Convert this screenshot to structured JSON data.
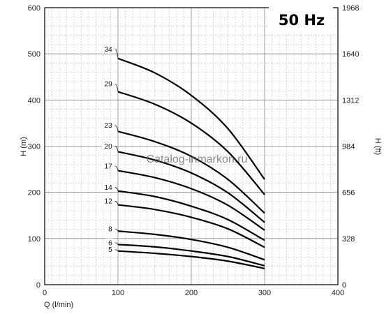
{
  "chart_data": {
    "type": "line",
    "badge": "50 Hz",
    "watermark": "Catalog-inmarkon.ru",
    "xlabel": "Q (l/min)",
    "ylabel_left": "H (m)",
    "ylabel_right": "H (ft)",
    "xlim": [
      0,
      400
    ],
    "ylim": [
      0,
      600
    ],
    "x_ticks": [
      0,
      100,
      200,
      300,
      400
    ],
    "y_ticks": [
      0,
      100,
      200,
      300,
      400,
      500,
      600
    ],
    "y_right_ticks": [
      "0",
      "328",
      "656",
      "984",
      "1312",
      "1640",
      "1968"
    ],
    "grid": true,
    "series": [
      {
        "name": "34",
        "shutoff": 510,
        "x": [
          100,
          150,
          200,
          250,
          300
        ],
        "y": [
          490,
          459,
          410,
          338,
          228
        ]
      },
      {
        "name": "29",
        "shutoff": 435,
        "x": [
          100,
          150,
          200,
          250,
          300
        ],
        "y": [
          418,
          391,
          350,
          288,
          195
        ]
      },
      {
        "name": "23",
        "shutoff": 345,
        "x": [
          100,
          150,
          200,
          250,
          300
        ],
        "y": [
          332,
          310,
          278,
          228,
          155
        ]
      },
      {
        "name": "20",
        "shutoff": 300,
        "x": [
          100,
          150,
          200,
          250,
          300
        ],
        "y": [
          288,
          270,
          242,
          199,
          135
        ]
      },
      {
        "name": "17",
        "shutoff": 257,
        "x": [
          100,
          150,
          200,
          250,
          300
        ],
        "y": [
          247,
          232,
          208,
          172,
          118
        ]
      },
      {
        "name": "14",
        "shutoff": 211,
        "x": [
          100,
          150,
          200,
          250,
          300
        ],
        "y": [
          203,
          191,
          170,
          141,
          96
        ]
      },
      {
        "name": "12",
        "shutoff": 181,
        "x": [
          100,
          150,
          200,
          250,
          300
        ],
        "y": [
          173,
          163,
          146,
          121,
          81
        ]
      },
      {
        "name": "8",
        "shutoff": 121,
        "x": [
          100,
          150,
          200,
          250,
          300
        ],
        "y": [
          116,
          109,
          98,
          81,
          54
        ]
      },
      {
        "name": "6",
        "shutoff": 91,
        "x": [
          100,
          150,
          200,
          250,
          300
        ],
        "y": [
          87,
          82,
          73,
          61,
          41
        ]
      },
      {
        "name": "5",
        "shutoff": 76,
        "x": [
          100,
          150,
          200,
          250,
          300
        ],
        "y": [
          73,
          68,
          61,
          51,
          35
        ]
      }
    ]
  }
}
